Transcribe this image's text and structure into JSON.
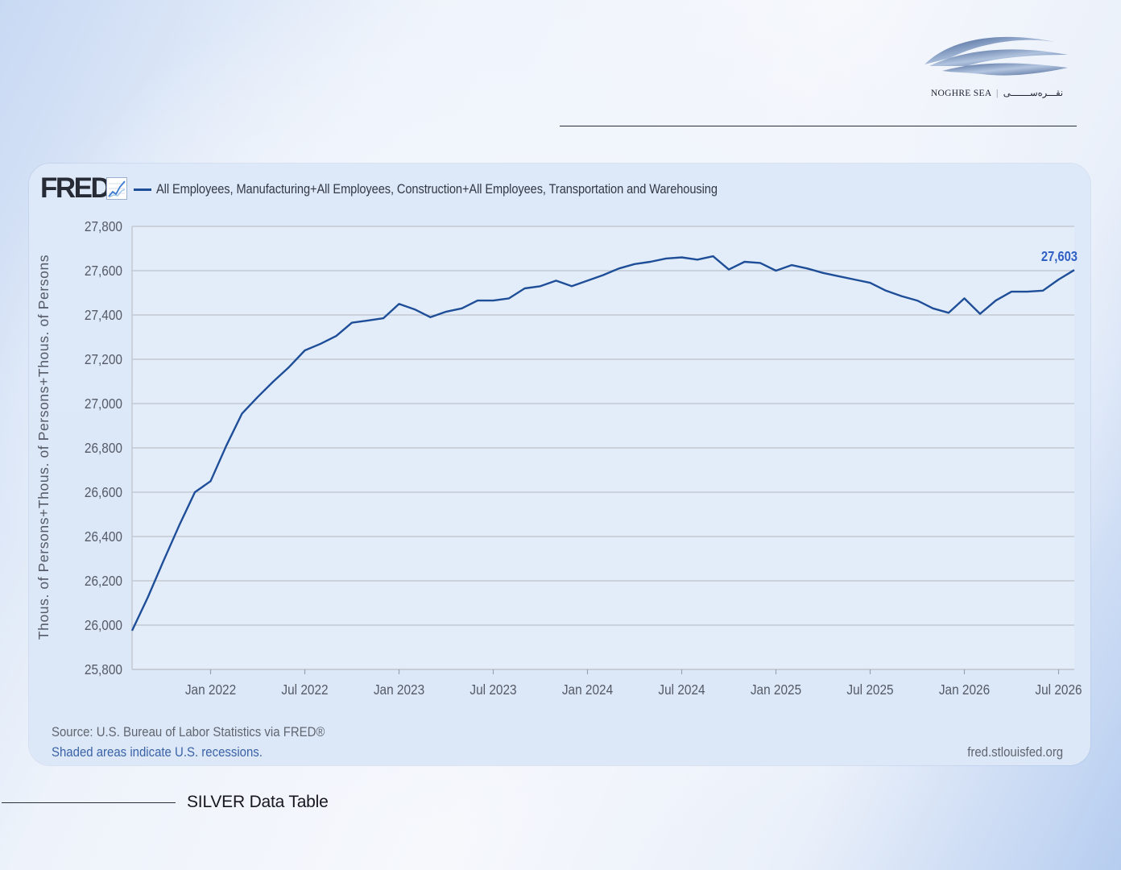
{
  "brand": {
    "name_latin": "NOGHRE SEA",
    "name_persian": "نقـــره‌ســـــــی",
    "separator": "|",
    "logo_icon": "wave-logo-icon"
  },
  "fred": {
    "logo_text": "FRED",
    "registered": "®",
    "chart_icon": "line-chart-icon"
  },
  "chart_data": {
    "type": "line",
    "title": "",
    "ylabel": "Thous. of Persons+Thous. of Persons+Thous. of Persons",
    "xlabel": "",
    "ylim": [
      25800,
      27800
    ],
    "yticks": [
      25800,
      26000,
      26200,
      26400,
      26600,
      26800,
      27000,
      27200,
      27400,
      27600,
      27800
    ],
    "ytick_labels": [
      "25,800",
      "26,000",
      "26,200",
      "26,400",
      "26,600",
      "26,800",
      "27,000",
      "27,200",
      "27,400",
      "27,600",
      "27,800"
    ],
    "xlim": [
      "2021-08",
      "2026-08"
    ],
    "xticks": [
      "2022-01",
      "2022-07",
      "2023-01",
      "2023-07",
      "2024-01",
      "2024-07",
      "2025-01",
      "2025-07",
      "2026-01",
      "2026-07"
    ],
    "xtick_labels": [
      "Jan 2022",
      "Jul 2022",
      "Jan 2023",
      "Jul 2023",
      "Jan 2024",
      "Jul 2024",
      "Jan 2025",
      "Jul 2025",
      "Jan 2026",
      "Jul 2026"
    ],
    "grid": "horizontal",
    "legend_position": "top-left",
    "line_color": "#1f4e99",
    "last_value_label": "27,603",
    "series": [
      {
        "name": "All Employees, Manufacturing+All Employees, Construction+All Employees, Transportation and Warehousing",
        "x": [
          "2021-08",
          "2021-09",
          "2021-10",
          "2021-11",
          "2021-12",
          "2022-01",
          "2022-02",
          "2022-03",
          "2022-04",
          "2022-05",
          "2022-06",
          "2022-07",
          "2022-08",
          "2022-09",
          "2022-10",
          "2022-11",
          "2022-12",
          "2023-01",
          "2023-02",
          "2023-03",
          "2023-04",
          "2023-05",
          "2023-06",
          "2023-07",
          "2023-08",
          "2023-09",
          "2023-10",
          "2023-11",
          "2023-12",
          "2024-01",
          "2024-02",
          "2024-03",
          "2024-04",
          "2024-05",
          "2024-06",
          "2024-07",
          "2024-08",
          "2024-09",
          "2024-10",
          "2024-11",
          "2024-12",
          "2025-01",
          "2025-02",
          "2025-03",
          "2025-04",
          "2025-05",
          "2025-06",
          "2025-07",
          "2025-08",
          "2025-09",
          "2025-10",
          "2025-11",
          "2025-12",
          "2026-01",
          "2026-02",
          "2026-03",
          "2026-04",
          "2026-05",
          "2026-06",
          "2026-07",
          "2026-08"
        ],
        "values": [
          25975,
          26125,
          26290,
          26450,
          26600,
          26650,
          26810,
          26955,
          27030,
          27100,
          27165,
          27240,
          27270,
          27305,
          27365,
          27375,
          27385,
          27450,
          27425,
          27390,
          27415,
          27430,
          27465,
          27465,
          27475,
          27520,
          27530,
          27555,
          27530,
          27555,
          27580,
          27610,
          27630,
          27640,
          27655,
          27660,
          27650,
          27665,
          27605,
          27640,
          27635,
          27600,
          27625,
          27610,
          27590,
          27575,
          27560,
          27545,
          27510,
          27485,
          27465,
          27430,
          27410,
          27475,
          27405,
          27465,
          27505,
          27505,
          27510,
          27560,
          27603
        ]
      }
    ]
  },
  "footer": {
    "source": "Source: U.S. Bureau of Labor Statistics via FRED®",
    "recessions": "Shaded areas indicate U.S. recessions.",
    "url": "fred.stlouisfed.org"
  },
  "caption": "SILVER Data Table"
}
